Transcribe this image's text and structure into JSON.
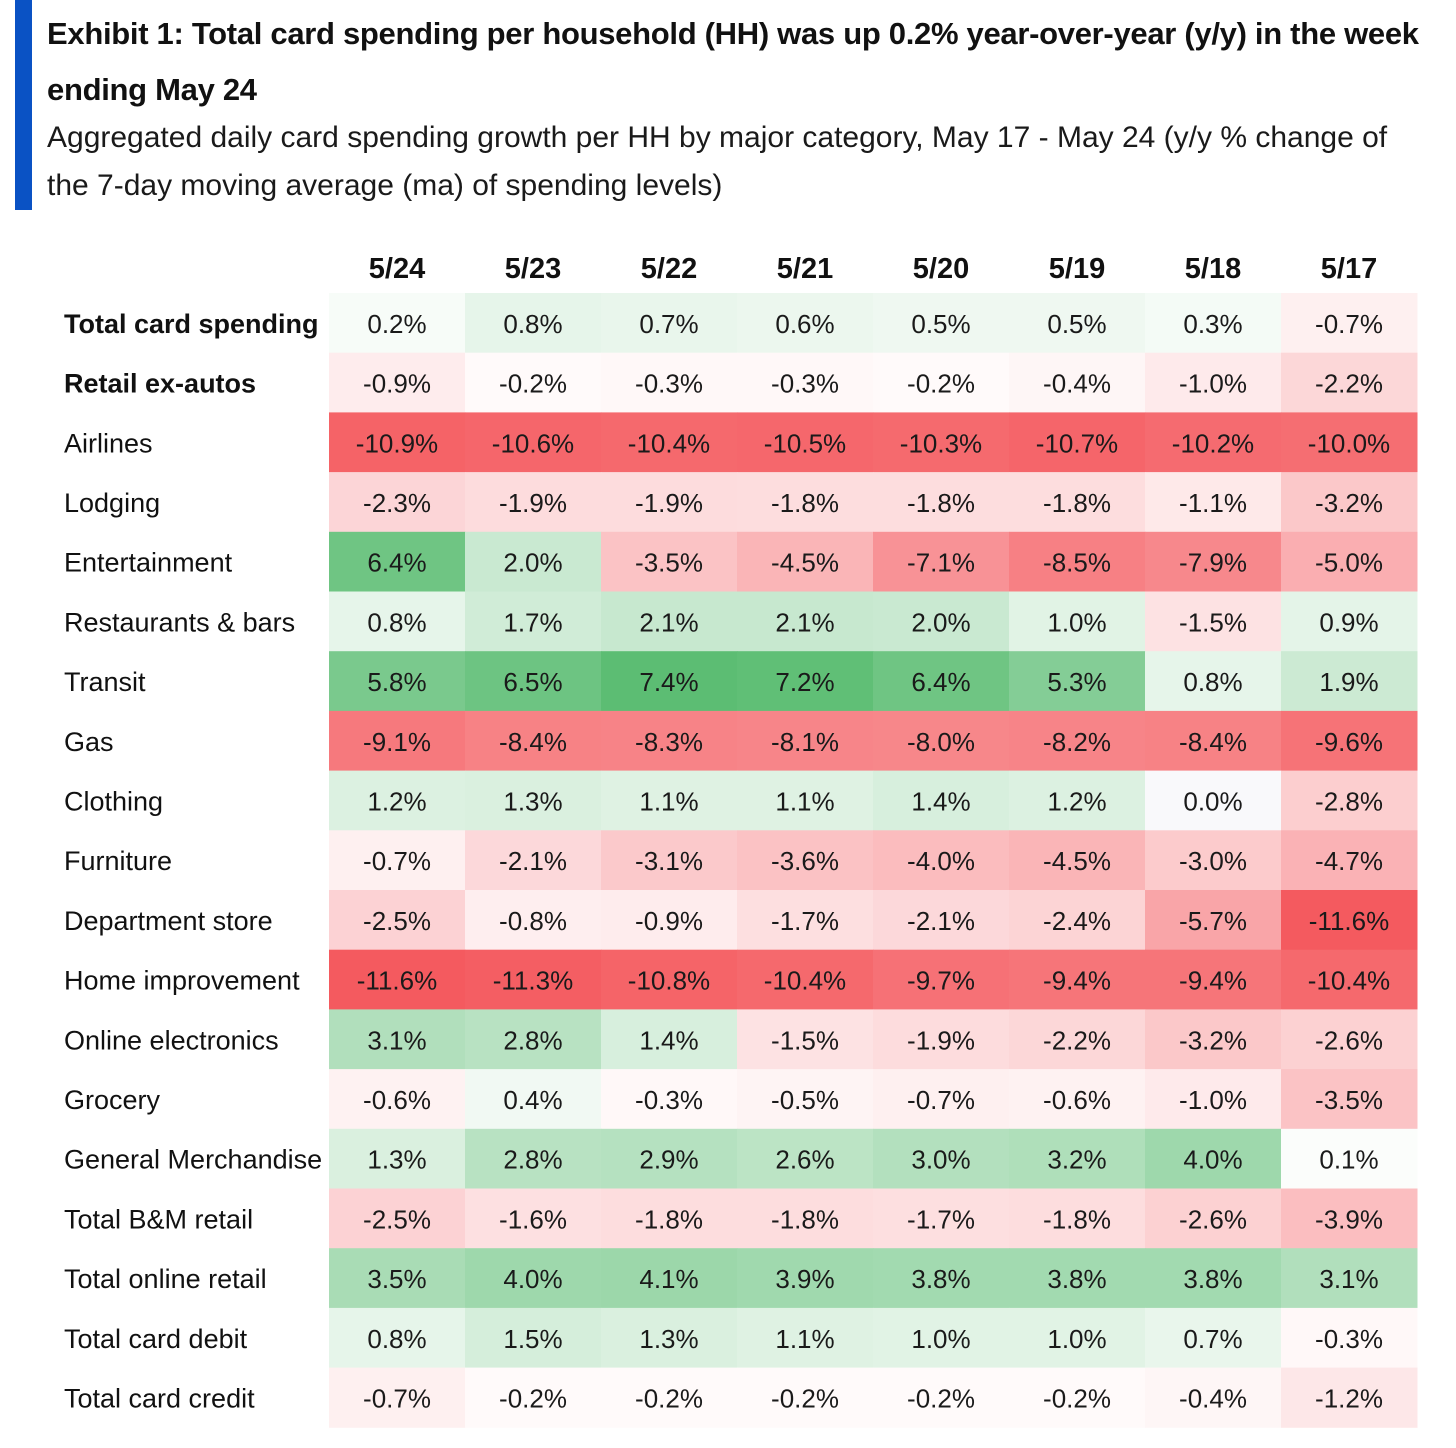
{
  "colors": {
    "accent": "#0a52c4",
    "positive": "#5cbd73",
    "negative": "#f45a5f",
    "neutral": "#ffffff"
  },
  "header": {
    "title": "Exhibit 1: Total card spending per household (HH) was up 0.2% year-over-year (y/y) in the week ending May 24",
    "subtitle": "Aggregated daily card spending growth per HH by major category, May 17 - May 24 (y/y % change of the 7-day moving average (ma) of spending levels)"
  },
  "chart_data": {
    "type": "heatmap",
    "title": "Exhibit 1: Total card spending per household (HH) was up 0.2% year-over-year (y/y) in the week ending May 24",
    "subtitle": "Aggregated daily card spending growth per HH by major category, May 17 - May 24 (y/y % change of the 7-day moving average (ma) of spending levels)",
    "unit": "%",
    "columns": [
      "5/24",
      "5/23",
      "5/22",
      "5/21",
      "5/20",
      "5/19",
      "5/18",
      "5/17"
    ],
    "rows": [
      {
        "label": "Total card spending",
        "bold": true,
        "values": [
          0.2,
          0.8,
          0.7,
          0.6,
          0.5,
          0.5,
          0.3,
          -0.7
        ]
      },
      {
        "label": "Retail ex-autos",
        "bold": true,
        "values": [
          -0.9,
          -0.2,
          -0.3,
          -0.3,
          -0.2,
          -0.4,
          -1.0,
          -2.2
        ]
      },
      {
        "label": "Airlines",
        "values": [
          -10.9,
          -10.6,
          -10.4,
          -10.5,
          -10.3,
          -10.7,
          -10.2,
          -10.0
        ]
      },
      {
        "label": "Lodging",
        "values": [
          -2.3,
          -1.9,
          -1.9,
          -1.8,
          -1.8,
          -1.8,
          -1.1,
          -3.2
        ]
      },
      {
        "label": "Entertainment",
        "values": [
          6.4,
          2.0,
          -3.5,
          -4.5,
          -7.1,
          -8.5,
          -7.9,
          -5.0
        ]
      },
      {
        "label": "Restaurants & bars",
        "values": [
          0.8,
          1.7,
          2.1,
          2.1,
          2.0,
          1.0,
          -1.5,
          0.9
        ]
      },
      {
        "label": "Transit",
        "values": [
          5.8,
          6.5,
          7.4,
          7.2,
          6.4,
          5.3,
          0.8,
          1.9
        ]
      },
      {
        "label": "Gas",
        "values": [
          -9.1,
          -8.4,
          -8.3,
          -8.1,
          -8.0,
          -8.2,
          -8.4,
          -9.6
        ]
      },
      {
        "label": "Clothing",
        "values": [
          1.2,
          1.3,
          1.1,
          1.1,
          1.4,
          1.2,
          0.0,
          -2.8
        ]
      },
      {
        "label": "Furniture",
        "values": [
          -0.7,
          -2.1,
          -3.1,
          -3.6,
          -4.0,
          -4.5,
          -3.0,
          -4.7
        ]
      },
      {
        "label": "Department store",
        "values": [
          -2.5,
          -0.8,
          -0.9,
          -1.7,
          -2.1,
          -2.4,
          -5.7,
          -11.6
        ]
      },
      {
        "label": "Home improvement",
        "values": [
          -11.6,
          -11.3,
          -10.8,
          -10.4,
          -9.7,
          -9.4,
          -9.4,
          -10.4
        ]
      },
      {
        "label": "Online electronics",
        "values": [
          3.1,
          2.8,
          1.4,
          -1.5,
          -1.9,
          -2.2,
          -3.2,
          -2.6
        ]
      },
      {
        "label": "Grocery",
        "values": [
          -0.6,
          0.4,
          -0.3,
          -0.5,
          -0.7,
          -0.6,
          -1.0,
          -3.5
        ]
      },
      {
        "label": "General Merchandise",
        "values": [
          1.3,
          2.8,
          2.9,
          2.6,
          3.0,
          3.2,
          4.0,
          0.1
        ]
      },
      {
        "label": "Total B&M retail",
        "values": [
          -2.5,
          -1.6,
          -1.8,
          -1.8,
          -1.7,
          -1.8,
          -2.6,
          -3.9
        ]
      },
      {
        "label": "Total online retail",
        "values": [
          3.5,
          4.0,
          4.1,
          3.9,
          3.8,
          3.8,
          3.8,
          3.1
        ]
      },
      {
        "label": "Total card debit",
        "values": [
          0.8,
          1.5,
          1.3,
          1.1,
          1.0,
          1.0,
          0.7,
          -0.3
        ]
      },
      {
        "label": "Total card credit",
        "values": [
          -0.7,
          -0.2,
          -0.2,
          -0.2,
          -0.2,
          -0.2,
          -0.4,
          -1.2
        ]
      }
    ]
  }
}
